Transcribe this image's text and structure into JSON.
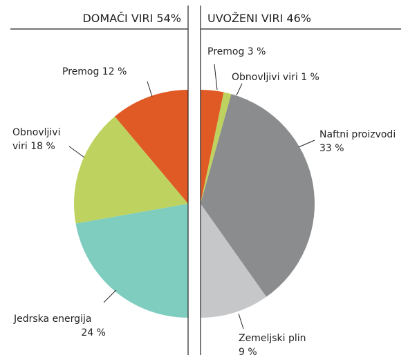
{
  "chart_data": [
    {
      "type": "pie",
      "title": "DOMAČI VIRI 54%",
      "side": "left",
      "values": [
        12,
        18,
        24
      ],
      "value_labels": [
        [
          "Premog 12 %"
        ],
        [
          "Obnovljivi",
          "viri 18 %"
        ],
        [
          "Jedrska energija",
          "24 %"
        ]
      ],
      "colors": [
        "#e05a26",
        "#bed35f",
        "#7fcdbf"
      ]
    },
    {
      "type": "pie",
      "title": "UVOŽENI VIRI 46%",
      "side": "right",
      "values": [
        3,
        1,
        33,
        9
      ],
      "value_labels": [
        [
          "Premog 3 %"
        ],
        [
          "Obnovljivi viri 1 %"
        ],
        [
          "Naftni proizvodi",
          "33 %"
        ],
        [
          "Zemeljski plin",
          "9 %"
        ]
      ],
      "colors": [
        "#e05a26",
        "#bed35f",
        "#8b8c8e",
        "#c6c7c9"
      ]
    }
  ]
}
